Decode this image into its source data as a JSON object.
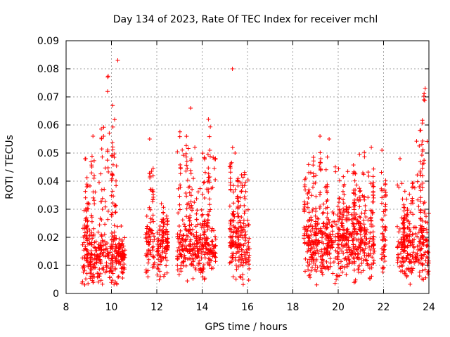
{
  "chart_data": {
    "type": "scatter",
    "title": "Day 134 of 2023, Rate Of TEC Index for receiver mchl",
    "xlabel": "GPS time / hours",
    "ylabel": "ROTI / TECUs",
    "xlim": [
      8,
      24
    ],
    "ylim": [
      0,
      0.09
    ],
    "x_ticks": [
      8,
      10,
      12,
      14,
      16,
      18,
      20,
      22,
      24
    ],
    "y_ticks": [
      0,
      0.01,
      0.02,
      0.03,
      0.04,
      0.05,
      0.06,
      0.07,
      0.08,
      0.09
    ],
    "x_tick_labels": [
      "8",
      "10",
      "12",
      "14",
      "16",
      "18",
      "20",
      "22",
      "24"
    ],
    "y_tick_labels": [
      "0",
      "0.01",
      "0.02",
      "0.03",
      "0.04",
      "0.05",
      "0.06",
      "0.07",
      "0.08",
      "0.09"
    ],
    "grid": true,
    "marker": "+",
    "series_color": "#ff0000",
    "segments": [
      {
        "x_start": 8.7,
        "x_end": 9.5,
        "y_base": 0.013,
        "spread": 0.006,
        "max": 0.056
      },
      {
        "x_start": 9.5,
        "x_end": 10.3,
        "y_base": 0.013,
        "spread": 0.007,
        "max": 0.083
      },
      {
        "x_start": 10.3,
        "x_end": 10.6,
        "y_base": 0.012,
        "spread": 0.005,
        "max": 0.024
      },
      {
        "x_start": 11.5,
        "x_end": 11.9,
        "y_base": 0.017,
        "spread": 0.007,
        "max": 0.055
      },
      {
        "x_start": 12.0,
        "x_end": 12.5,
        "y_base": 0.015,
        "spread": 0.006,
        "max": 0.032
      },
      {
        "x_start": 12.9,
        "x_end": 13.6,
        "y_base": 0.016,
        "spread": 0.006,
        "max": 0.066
      },
      {
        "x_start": 13.6,
        "x_end": 14.0,
        "y_base": 0.015,
        "spread": 0.005,
        "max": 0.052
      },
      {
        "x_start": 14.0,
        "x_end": 14.6,
        "y_base": 0.016,
        "spread": 0.007,
        "max": 0.062
      },
      {
        "x_start": 15.2,
        "x_end": 15.35,
        "y_base": 0.016,
        "spread": 0.005,
        "max": 0.08
      },
      {
        "x_start": 15.35,
        "x_end": 16.1,
        "y_base": 0.017,
        "spread": 0.007,
        "max": 0.05
      },
      {
        "x_start": 18.5,
        "x_end": 19.5,
        "y_base": 0.017,
        "spread": 0.008,
        "max": 0.056
      },
      {
        "x_start": 19.5,
        "x_end": 20.5,
        "y_base": 0.017,
        "spread": 0.008,
        "max": 0.055
      },
      {
        "x_start": 20.5,
        "x_end": 21.6,
        "y_base": 0.017,
        "spread": 0.008,
        "max": 0.052
      },
      {
        "x_start": 21.9,
        "x_end": 22.1,
        "y_base": 0.015,
        "spread": 0.006,
        "max": 0.051
      },
      {
        "x_start": 22.6,
        "x_end": 23.4,
        "y_base": 0.016,
        "spread": 0.007,
        "max": 0.048
      },
      {
        "x_start": 23.4,
        "x_end": 24.0,
        "y_base": 0.016,
        "spread": 0.007,
        "max": 0.073
      }
    ]
  }
}
